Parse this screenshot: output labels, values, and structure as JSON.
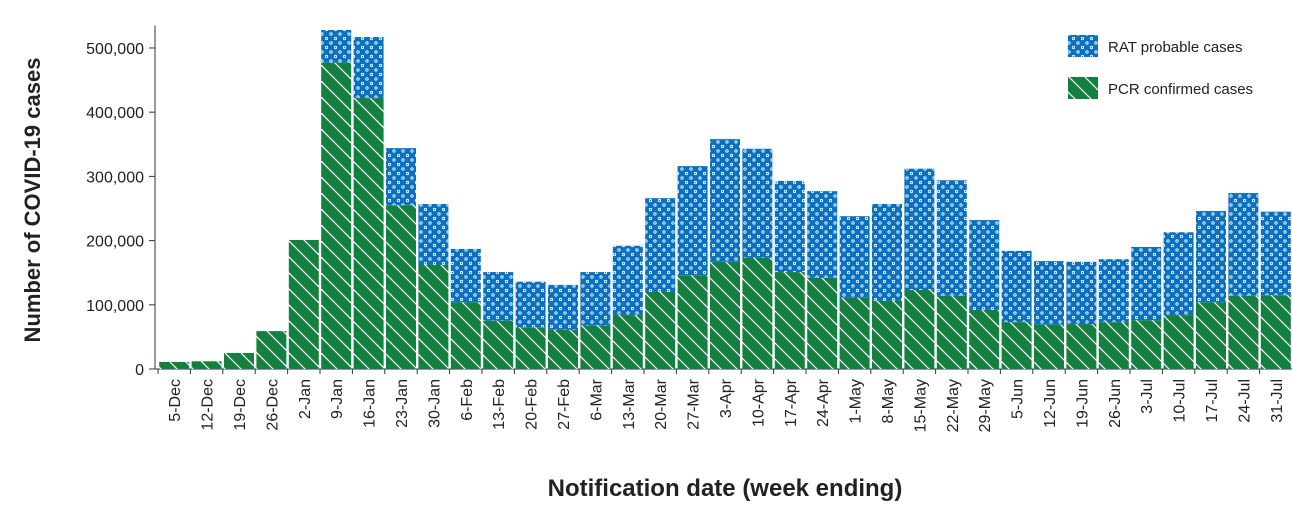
{
  "chart_data": {
    "type": "stacked-bar",
    "x_label": "Notification date (week ending)",
    "y_label": "Number of COVID-19 cases",
    "categories": [
      "5-Dec",
      "12-Dec",
      "19-Dec",
      "26-Dec",
      "2-Jan",
      "9-Jan",
      "16-Jan",
      "23-Jan",
      "30-Jan",
      "6-Feb",
      "13-Feb",
      "20-Feb",
      "27-Feb",
      "6-Mar",
      "13-Mar",
      "20-Mar",
      "27-Mar",
      "3-Apr",
      "10-Apr",
      "17-Apr",
      "24-Apr",
      "1-May",
      "8-May",
      "15-May",
      "22-May",
      "29-May",
      "5-Jun",
      "12-Jun",
      "19-Jun",
      "26-Jun",
      "3-Jul",
      "10-Jul",
      "17-Jul",
      "24-Jul",
      "31-Jul"
    ],
    "series": [
      {
        "name": "PCR confirmed cases",
        "color": "#14803f",
        "pattern": "hatch",
        "values": [
          11000,
          12000,
          25000,
          59000,
          201000,
          477000,
          422000,
          255000,
          162000,
          104000,
          75000,
          65000,
          61000,
          68000,
          84000,
          120000,
          146000,
          167000,
          173000,
          151000,
          142000,
          111000,
          106000,
          123000,
          114000,
          92000,
          73000,
          69000,
          70000,
          73000,
          76000,
          84000,
          104000,
          114000,
          115000
        ]
      },
      {
        "name": "RAT probable cases",
        "color": "#0a70c0",
        "pattern": "dots",
        "values": [
          0,
          0,
          0,
          0,
          0,
          51000,
          95000,
          89000,
          95000,
          83000,
          76000,
          71000,
          70000,
          83000,
          108000,
          146000,
          170000,
          191000,
          170000,
          142000,
          135000,
          127000,
          151000,
          189000,
          180000,
          140000,
          111000,
          99000,
          97000,
          98000,
          114000,
          129000,
          142000,
          160000,
          130000
        ]
      }
    ],
    "ylim": [
      0,
      535000
    ],
    "yticks": [
      0,
      {
        "value": 100000,
        "label": "100,000"
      },
      {
        "value": 200000,
        "label": "200,000"
      },
      {
        "value": 300000,
        "label": "300,000"
      },
      {
        "value": 400000,
        "label": "400,000"
      },
      {
        "value": 500000,
        "label": "500,000"
      }
    ],
    "legend": "upper right"
  }
}
